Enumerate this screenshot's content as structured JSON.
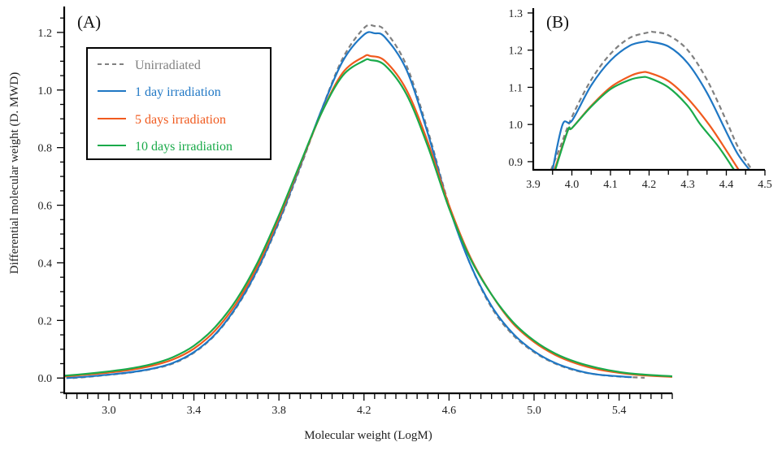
{
  "chart_data": [
    {
      "id": "A",
      "type": "line",
      "panel_label": "(A)",
      "xlabel": "Molecular weight (LogM)",
      "ylabel": "Differential molecular weight (D. MWD)",
      "xlim": [
        2.79,
        5.65
      ],
      "ylim": [
        -0.053,
        1.29
      ],
      "xticks": [
        3.0,
        3.4,
        3.8,
        4.2,
        4.6,
        5.0,
        5.4
      ],
      "xtick_labels": [
        "3.0",
        "3.4",
        "3.8",
        "4.2",
        "4.6",
        "5.0",
        "5.4"
      ],
      "x_minor_step": 0.05,
      "yticks": [
        0.0,
        0.2,
        0.4,
        0.6,
        0.8,
        1.0,
        1.2
      ],
      "ytick_labels": [
        "0.0",
        "0.2",
        "0.4",
        "0.6",
        "0.8",
        "1.0",
        "1.2"
      ],
      "y_minor_step": 0.05,
      "grid": false,
      "legend_position": "top-left",
      "series": [
        {
          "name": "Unirradiated",
          "color": "#808080",
          "dashed": true,
          "x": [
            2.83,
            2.9,
            3.0,
            3.1,
            3.2,
            3.3,
            3.4,
            3.5,
            3.6,
            3.7,
            3.8,
            3.9,
            4.0,
            4.1,
            4.2,
            4.25,
            4.3,
            4.4,
            4.5,
            4.6,
            4.7,
            4.8,
            4.9,
            5.0,
            5.1,
            5.2,
            5.3,
            5.4,
            5.52
          ],
          "y": [
            0.0,
            0.004,
            0.011,
            0.019,
            0.031,
            0.05,
            0.088,
            0.15,
            0.245,
            0.375,
            0.54,
            0.73,
            0.93,
            1.11,
            1.215,
            1.222,
            1.205,
            1.085,
            0.86,
            0.6,
            0.395,
            0.245,
            0.15,
            0.09,
            0.05,
            0.025,
            0.012,
            0.005,
            0.001
          ]
        },
        {
          "name": "1 day irradiation",
          "color": "#1f77c4",
          "dashed": false,
          "x": [
            2.8,
            2.9,
            3.0,
            3.1,
            3.2,
            3.3,
            3.4,
            3.5,
            3.6,
            3.7,
            3.8,
            3.9,
            4.0,
            4.1,
            4.2,
            4.25,
            4.3,
            4.4,
            4.5,
            4.6,
            4.7,
            4.8,
            4.9,
            5.0,
            5.1,
            5.2,
            5.3,
            5.46
          ],
          "y": [
            0.0,
            0.005,
            0.012,
            0.02,
            0.032,
            0.052,
            0.09,
            0.152,
            0.248,
            0.378,
            0.545,
            0.735,
            0.93,
            1.1,
            1.192,
            1.197,
            1.182,
            1.07,
            0.85,
            0.595,
            0.395,
            0.25,
            0.155,
            0.093,
            0.052,
            0.027,
            0.012,
            0.003
          ]
        },
        {
          "name": "5 days irradiation",
          "color": "#f05a1e",
          "dashed": false,
          "x": [
            2.79,
            2.9,
            3.0,
            3.1,
            3.2,
            3.3,
            3.4,
            3.5,
            3.6,
            3.7,
            3.8,
            3.9,
            4.0,
            4.1,
            4.2,
            4.23,
            4.3,
            4.4,
            4.5,
            4.6,
            4.7,
            4.8,
            4.9,
            5.0,
            5.1,
            5.2,
            5.3,
            5.4,
            5.5,
            5.65
          ],
          "y": [
            0.005,
            0.012,
            0.019,
            0.028,
            0.042,
            0.064,
            0.102,
            0.165,
            0.26,
            0.39,
            0.555,
            0.74,
            0.92,
            1.06,
            1.116,
            1.118,
            1.1,
            1.0,
            0.82,
            0.6,
            0.42,
            0.29,
            0.19,
            0.125,
            0.08,
            0.05,
            0.03,
            0.018,
            0.01,
            0.004
          ]
        },
        {
          "name": "10 days irradiation",
          "color": "#1aaa4a",
          "dashed": false,
          "x": [
            2.79,
            2.9,
            3.0,
            3.1,
            3.2,
            3.3,
            3.4,
            3.5,
            3.6,
            3.7,
            3.8,
            3.9,
            4.0,
            4.1,
            4.2,
            4.23,
            4.3,
            4.4,
            4.5,
            4.6,
            4.7,
            4.8,
            4.9,
            5.0,
            5.1,
            5.2,
            5.3,
            5.4,
            5.5,
            5.65
          ],
          "y": [
            0.008,
            0.015,
            0.023,
            0.033,
            0.048,
            0.072,
            0.112,
            0.177,
            0.272,
            0.402,
            0.565,
            0.745,
            0.92,
            1.05,
            1.102,
            1.104,
            1.085,
            0.985,
            0.805,
            0.59,
            0.415,
            0.29,
            0.195,
            0.13,
            0.085,
            0.055,
            0.035,
            0.021,
            0.013,
            0.006
          ]
        }
      ]
    },
    {
      "id": "B",
      "type": "line",
      "panel_label": "(B)",
      "xlabel": "",
      "ylabel": "",
      "xlim": [
        3.9,
        4.5
      ],
      "ylim": [
        0.878,
        1.313
      ],
      "xticks": [
        3.9,
        4.0,
        4.1,
        4.2,
        4.3,
        4.4,
        4.5
      ],
      "xtick_labels": [
        "3.9",
        "4.0",
        "4.1",
        "4.2",
        "4.3",
        "4.4",
        "4.5"
      ],
      "x_minor_step": 0.05,
      "yticks": [
        0.9,
        1.0,
        1.1,
        1.2,
        1.3
      ],
      "ytick_labels": [
        "0.9",
        "1.0",
        "1.1",
        "1.2",
        "1.3"
      ],
      "y_minor_step": 0.05,
      "grid": false,
      "series": [
        {
          "name": "Unirradiated",
          "color": "#808080",
          "dashed": true,
          "x": [
            3.946,
            3.97,
            4.0,
            4.05,
            4.1,
            4.15,
            4.2,
            4.21,
            4.25,
            4.3,
            4.35,
            4.4,
            4.43,
            4.466
          ],
          "y": [
            0.878,
            0.94,
            1.02,
            1.12,
            1.19,
            1.233,
            1.248,
            1.249,
            1.24,
            1.2,
            1.12,
            1.01,
            0.94,
            0.878
          ]
        },
        {
          "name": "1 day irradiation",
          "color": "#1f77c4",
          "dashed": false,
          "x": [
            3.95,
            3.976,
            4.0,
            4.05,
            4.1,
            4.15,
            4.19,
            4.2,
            4.25,
            4.3,
            4.35,
            4.4,
            4.43,
            4.46
          ],
          "y": [
            0.878,
            1.0,
            1.01,
            1.105,
            1.172,
            1.212,
            1.223,
            1.223,
            1.21,
            1.165,
            1.085,
            0.98,
            0.92,
            0.878
          ]
        },
        {
          "name": "5 days irradiation",
          "color": "#f05a1e",
          "dashed": false,
          "x": [
            3.955,
            3.99,
            4.0,
            4.05,
            4.1,
            4.15,
            4.18,
            4.2,
            4.25,
            4.3,
            4.355,
            4.4,
            4.432
          ],
          "y": [
            0.878,
            0.985,
            0.99,
            1.05,
            1.1,
            1.13,
            1.14,
            1.139,
            1.117,
            1.07,
            1.0,
            0.93,
            0.878
          ]
        },
        {
          "name": "10 days irradiation",
          "color": "#1aaa4a",
          "dashed": false,
          "x": [
            3.957,
            3.99,
            4.0,
            4.05,
            4.1,
            4.15,
            4.18,
            4.2,
            4.25,
            4.3,
            4.333,
            4.38,
            4.42
          ],
          "y": [
            0.878,
            0.985,
            0.99,
            1.048,
            1.095,
            1.12,
            1.127,
            1.125,
            1.1,
            1.05,
            1.0,
            0.94,
            0.878
          ]
        }
      ]
    }
  ]
}
